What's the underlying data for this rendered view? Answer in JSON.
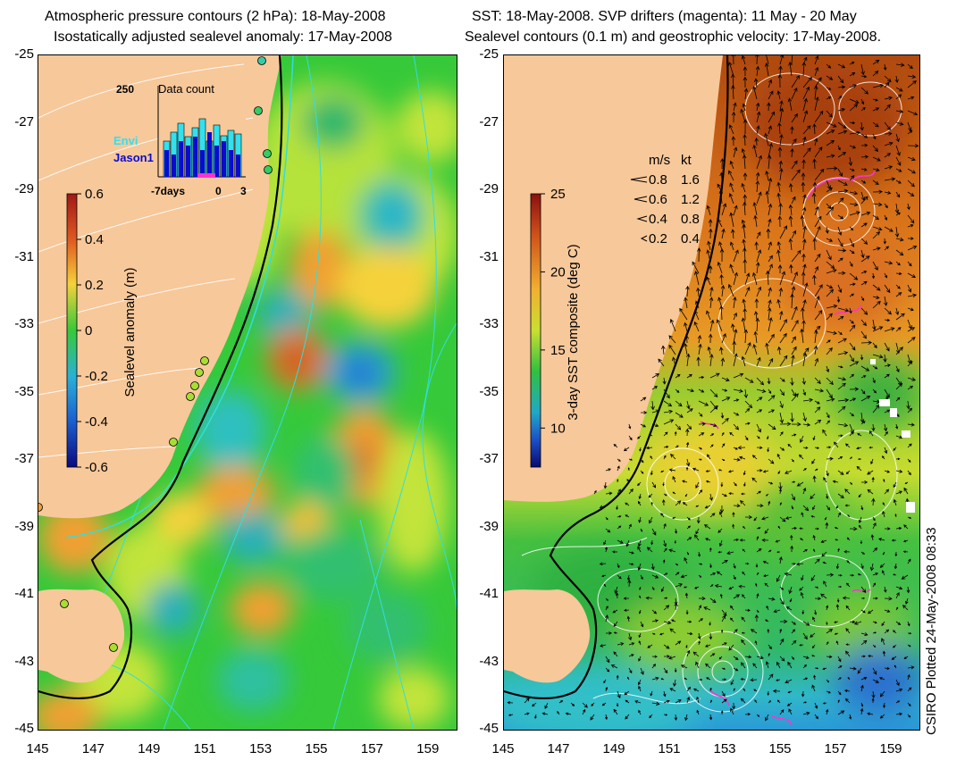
{
  "left_panel": {
    "title_line1": "Atmospheric pressure contours (2 hPa): 18-May-2008",
    "title_line2": "Isostatically adjusted sealevel anomaly: 17-May-2008",
    "colorbar": {
      "label": "Sealevel anomaly (m)",
      "ticks": [
        "0.6",
        "0.4",
        "0.2",
        "0",
        "-0.2",
        "-0.4",
        "-0.6"
      ],
      "range": [
        -0.6,
        0.6
      ]
    },
    "inset": {
      "title": "Data count",
      "ymax_label": "250",
      "x_ticks": [
        "-7days",
        "0",
        "3"
      ],
      "legend": [
        {
          "name": "Envi",
          "color": "#33e0ee"
        },
        {
          "name": "Jason1",
          "color": "#0a0ad0"
        }
      ]
    }
  },
  "right_panel": {
    "title_line1": "SST: 18-May-2008. SVP drifters (magenta): 11 May - 20 May",
    "title_line2": "Sealevel contours (0.1 m) and geostrophic velocity: 17-May-2008.",
    "colorbar": {
      "label": "3-day SST composite (deg C)",
      "ticks": [
        "25",
        "20",
        "15",
        "10"
      ],
      "range": [
        7.5,
        25
      ]
    },
    "velocity_legend": {
      "header_ms": "m/s",
      "header_kt": "kt",
      "rows": [
        {
          "ms": "0.8",
          "kt": "1.6"
        },
        {
          "ms": "0.6",
          "kt": "1.2"
        },
        {
          "ms": "0.4",
          "kt": "0.8"
        },
        {
          "ms": "0.2",
          "kt": "0.4"
        }
      ]
    }
  },
  "axes": {
    "lat_ticks": [
      "-25",
      "-27",
      "-29",
      "-31",
      "-33",
      "-35",
      "-37",
      "-39",
      "-41",
      "-43",
      "-45"
    ],
    "lon_ticks": [
      "145",
      "147",
      "149",
      "151",
      "153",
      "155",
      "157",
      "159"
    ],
    "lat_range": [
      -45,
      -25
    ],
    "lon_range": [
      145,
      160
    ]
  },
  "credit": "CSIRO Plotted 24-May-2008 08:33",
  "colors": {
    "land": "#f7c89a",
    "ocean_green": "#33cc33",
    "sst_warm": "#c85a10",
    "sst_cold": "#1a8fd0",
    "drifter": "#ff33cc"
  }
}
